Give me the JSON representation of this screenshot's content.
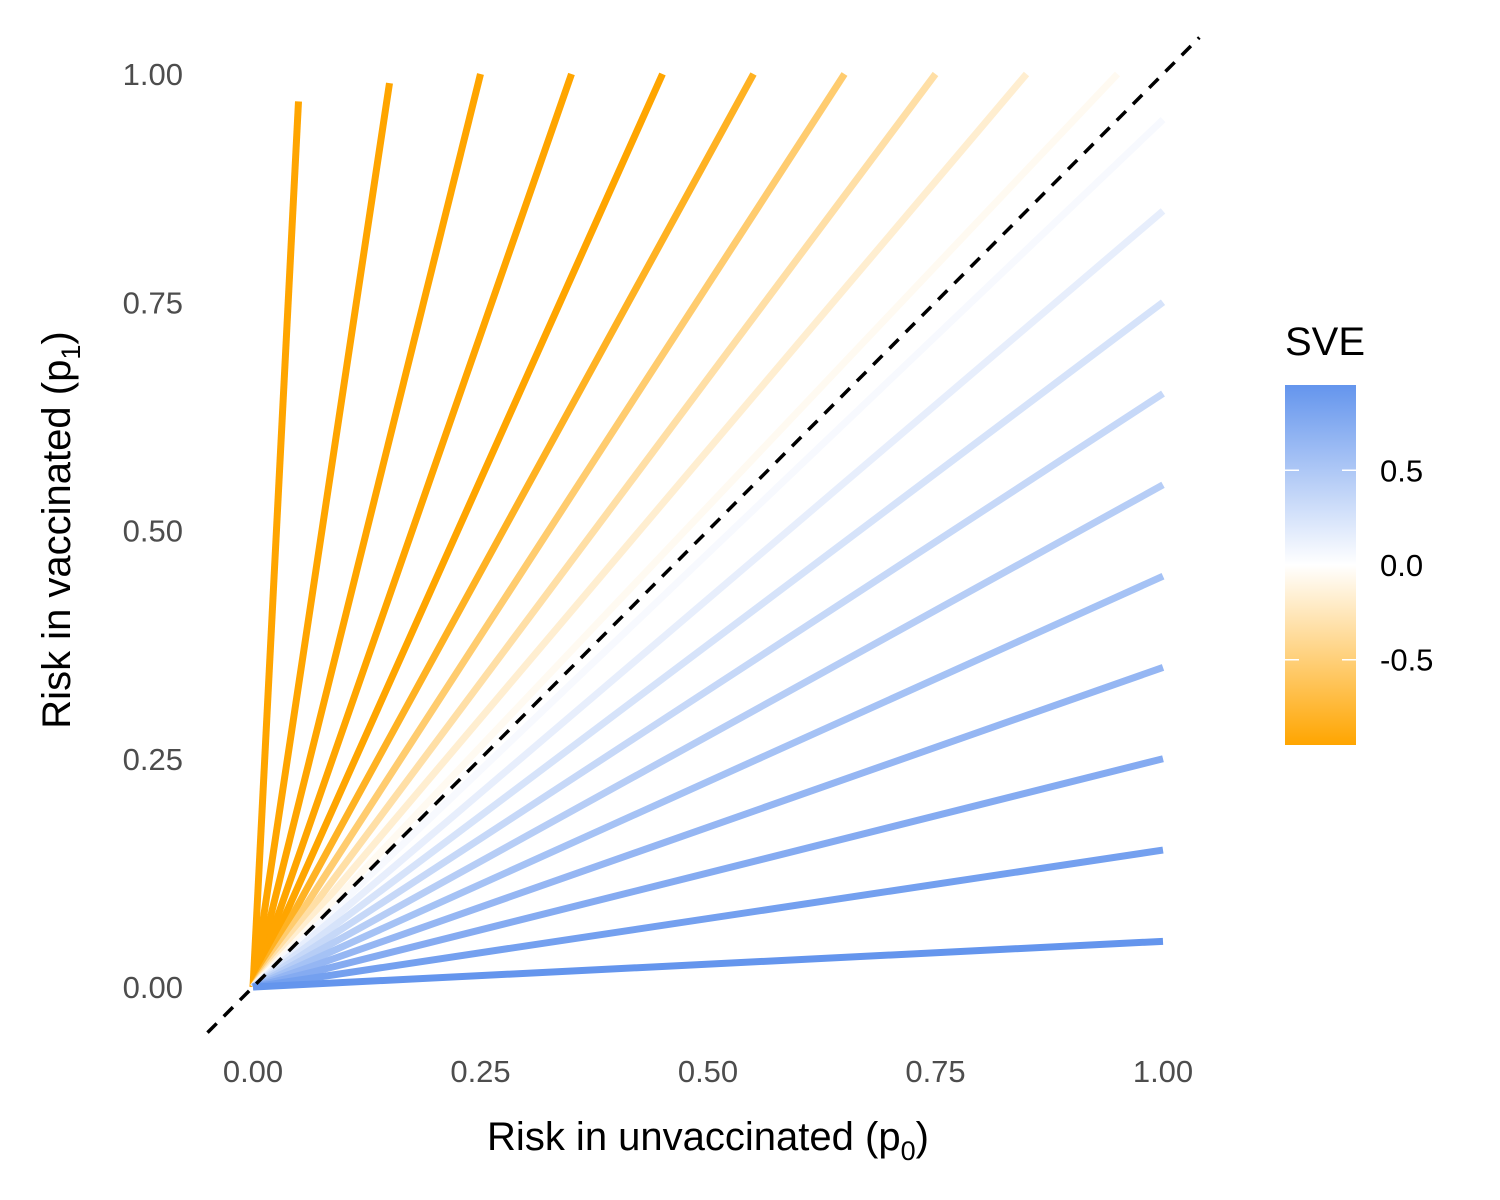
{
  "chart_data": {
    "type": "line",
    "xlabel": {
      "main": "Risk in unvaccinated (p",
      "sub": "0",
      "close": ")"
    },
    "ylabel": {
      "main": "Risk in vaccinated (p",
      "sub": "1",
      "close": ")"
    },
    "xlim": [
      -0.05,
      1.05
    ],
    "ylim": [
      -0.05,
      1.05
    ],
    "x_ticks": [
      "0.00",
      "0.25",
      "0.50",
      "0.75",
      "1.00"
    ],
    "y_ticks": [
      "0.00",
      "0.25",
      "0.50",
      "0.75",
      "1.00"
    ],
    "grid": false,
    "reference_line": {
      "style": "dashed",
      "color": "#000000",
      "from": [
        -0.05,
        -0.05
      ],
      "to": [
        1.04,
        1.04
      ]
    },
    "series": [
      {
        "sve": -19.0,
        "end": [
          0.05,
          0.97
        ]
      },
      {
        "sve": -5.667,
        "end": [
          0.15,
          0.99
        ]
      },
      {
        "sve": -3.0,
        "end": [
          0.25,
          1.0
        ]
      },
      {
        "sve": -1.857,
        "end": [
          0.35,
          1.0
        ]
      },
      {
        "sve": -1.222,
        "end": [
          0.45,
          1.0
        ]
      },
      {
        "sve": -0.818,
        "end": [
          0.55,
          1.0
        ]
      },
      {
        "sve": -0.538,
        "end": [
          0.65,
          1.0
        ]
      },
      {
        "sve": -0.333,
        "end": [
          0.75,
          1.0
        ]
      },
      {
        "sve": -0.176,
        "end": [
          0.85,
          1.0
        ]
      },
      {
        "sve": -0.053,
        "end": [
          0.95,
          1.0
        ]
      },
      {
        "sve": 0.05,
        "end": [
          1.0,
          0.95
        ]
      },
      {
        "sve": 0.15,
        "end": [
          1.0,
          0.85
        ]
      },
      {
        "sve": 0.25,
        "end": [
          1.0,
          0.75
        ]
      },
      {
        "sve": 0.35,
        "end": [
          1.0,
          0.65
        ]
      },
      {
        "sve": 0.45,
        "end": [
          1.0,
          0.55
        ]
      },
      {
        "sve": 0.55,
        "end": [
          1.0,
          0.45
        ]
      },
      {
        "sve": 0.65,
        "end": [
          1.0,
          0.35
        ]
      },
      {
        "sve": 0.75,
        "end": [
          1.0,
          0.25
        ]
      },
      {
        "sve": 0.85,
        "end": [
          1.0,
          0.15
        ]
      },
      {
        "sve": 0.95,
        "end": [
          1.0,
          0.05
        ]
      }
    ],
    "legend": {
      "title": "SVE",
      "placement": "right",
      "range": [
        -0.95,
        0.95
      ],
      "ticks": [
        {
          "value": 0.5,
          "label": "0.5"
        },
        {
          "value": 0.0,
          "label": "0.0"
        },
        {
          "value": -0.5,
          "label": "-0.5"
        }
      ],
      "colors": {
        "low": "#FFA500",
        "mid": "#FFFFFF",
        "high": "#6495ED"
      }
    }
  }
}
